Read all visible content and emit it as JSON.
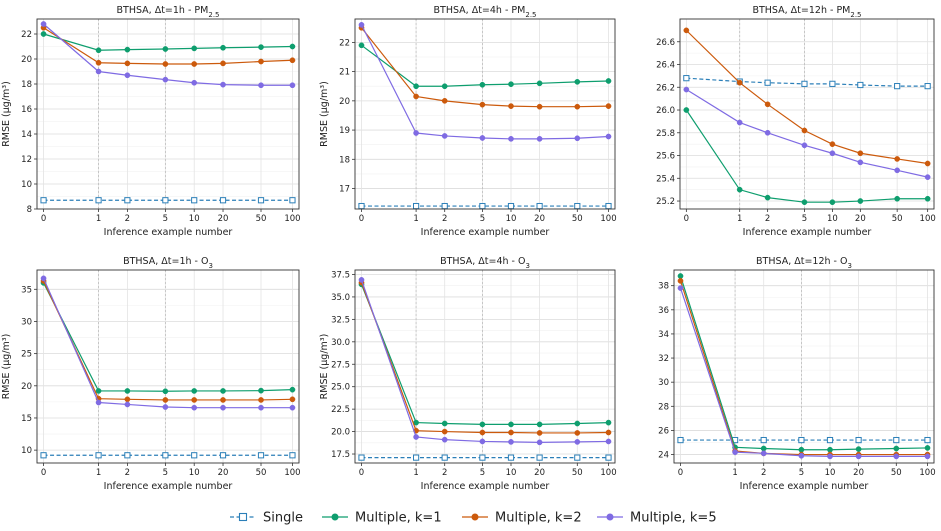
{
  "chart_data": [
    {
      "type": "line",
      "title": "BTHSA, Δt=1h - PM",
      "title_sub": "2.5",
      "xlabel": "Inference example number",
      "ylabel": "RMSE (μg/m³)",
      "categories": [
        "0",
        "1",
        "2",
        "5",
        "10",
        "20",
        "50",
        "100"
      ],
      "ylim": [
        8,
        23.2
      ],
      "yticks": [
        8,
        10,
        12,
        14,
        16,
        18,
        20,
        22
      ],
      "series": [
        {
          "name": "Single",
          "values": [
            8.7,
            8.7,
            8.7,
            8.7,
            8.7,
            8.7,
            8.7,
            8.7
          ]
        },
        {
          "name": "Multiple, k=1",
          "values": [
            22.0,
            20.7,
            20.75,
            20.8,
            20.85,
            20.9,
            20.95,
            21.0
          ]
        },
        {
          "name": "Multiple, k=2",
          "values": [
            22.5,
            19.7,
            19.65,
            19.6,
            19.6,
            19.65,
            19.8,
            19.9
          ]
        },
        {
          "name": "Multiple, k=5",
          "values": [
            22.8,
            19.0,
            18.7,
            18.35,
            18.1,
            17.95,
            17.9,
            17.9
          ]
        }
      ]
    },
    {
      "type": "line",
      "title": "BTHSA, Δt=4h - PM",
      "title_sub": "2.5",
      "xlabel": "Inference example number",
      "ylabel": "RMSE (μg/m³)",
      "categories": [
        "0",
        "1",
        "2",
        "5",
        "10",
        "20",
        "50",
        "100"
      ],
      "ylim": [
        16.3,
        22.8
      ],
      "yticks": [
        17,
        18,
        19,
        20,
        21,
        22
      ],
      "series": [
        {
          "name": "Single",
          "values": [
            16.4,
            16.4,
            16.4,
            16.4,
            16.4,
            16.4,
            16.4,
            16.4
          ]
        },
        {
          "name": "Multiple, k=1",
          "values": [
            21.9,
            20.5,
            20.5,
            20.55,
            20.57,
            20.6,
            20.65,
            20.68
          ]
        },
        {
          "name": "Multiple, k=2",
          "values": [
            22.5,
            20.15,
            20.0,
            19.87,
            19.82,
            19.8,
            19.8,
            19.82
          ]
        },
        {
          "name": "Multiple, k=5",
          "values": [
            22.6,
            18.9,
            18.8,
            18.73,
            18.7,
            18.7,
            18.72,
            18.78
          ]
        }
      ]
    },
    {
      "type": "line",
      "title": "BTHSA, Δt=12h - PM",
      "title_sub": "2.5",
      "xlabel": "Inference example number",
      "ylabel": "",
      "categories": [
        "0",
        "1",
        "2",
        "5",
        "10",
        "20",
        "50",
        "100"
      ],
      "ylim": [
        25.13,
        26.8
      ],
      "yticks": [
        25.2,
        25.4,
        25.6,
        25.8,
        26.0,
        26.2,
        26.4,
        26.6
      ],
      "series": [
        {
          "name": "Single",
          "values": [
            26.28,
            26.25,
            26.24,
            26.23,
            26.23,
            26.22,
            26.21,
            26.21
          ]
        },
        {
          "name": "Multiple, k=1",
          "values": [
            26.0,
            25.3,
            25.23,
            25.19,
            25.19,
            25.2,
            25.22,
            25.22
          ]
        },
        {
          "name": "Multiple, k=2",
          "values": [
            26.7,
            26.24,
            26.05,
            25.82,
            25.7,
            25.62,
            25.57,
            25.53
          ]
        },
        {
          "name": "Multiple, k=5",
          "values": [
            26.18,
            25.89,
            25.8,
            25.69,
            25.62,
            25.54,
            25.47,
            25.41
          ]
        }
      ]
    },
    {
      "type": "line",
      "title": "BTHSA, Δt=1h - O",
      "title_sub": "3",
      "xlabel": "Inference example number",
      "ylabel": "RMSE (μg/m³)",
      "categories": [
        "0",
        "1",
        "2",
        "5",
        "10",
        "20",
        "50",
        "100"
      ],
      "ylim": [
        8,
        38
      ],
      "yticks": [
        10,
        15,
        20,
        25,
        30,
        35
      ],
      "series": [
        {
          "name": "Single",
          "values": [
            9.2,
            9.2,
            9.2,
            9.2,
            9.2,
            9.2,
            9.2,
            9.2
          ]
        },
        {
          "name": "Multiple, k=1",
          "values": [
            36.0,
            19.2,
            19.2,
            19.15,
            19.2,
            19.2,
            19.25,
            19.4
          ]
        },
        {
          "name": "Multiple, k=2",
          "values": [
            36.3,
            18.0,
            17.9,
            17.8,
            17.8,
            17.8,
            17.8,
            17.9
          ]
        },
        {
          "name": "Multiple, k=5",
          "values": [
            36.7,
            17.4,
            17.1,
            16.7,
            16.6,
            16.6,
            16.6,
            16.6
          ]
        }
      ]
    },
    {
      "type": "line",
      "title": "BTHSA, Δt=4h - O",
      "title_sub": "3",
      "xlabel": "Inference example number",
      "ylabel": "RMSE (μg/m³)",
      "categories": [
        "0",
        "1",
        "2",
        "5",
        "10",
        "20",
        "50",
        "100"
      ],
      "ylim": [
        16.5,
        38
      ],
      "yticks": [
        17.5,
        20.0,
        22.5,
        25.0,
        27.5,
        30.0,
        32.5,
        35.0,
        37.5
      ],
      "series": [
        {
          "name": "Single",
          "values": [
            17.1,
            17.1,
            17.1,
            17.1,
            17.1,
            17.1,
            17.1,
            17.1
          ]
        },
        {
          "name": "Multiple, k=1",
          "values": [
            36.4,
            21.0,
            20.9,
            20.8,
            20.8,
            20.8,
            20.9,
            21.0
          ]
        },
        {
          "name": "Multiple, k=2",
          "values": [
            36.6,
            20.1,
            20.0,
            19.9,
            19.9,
            19.85,
            19.85,
            19.9
          ]
        },
        {
          "name": "Multiple, k=5",
          "values": [
            36.9,
            19.4,
            19.1,
            18.9,
            18.85,
            18.8,
            18.85,
            18.9
          ]
        }
      ]
    },
    {
      "type": "line",
      "title": "BTHSA, Δt=12h - O",
      "title_sub": "3",
      "xlabel": "Inference example number",
      "ylabel": "",
      "categories": [
        "0",
        "1",
        "2",
        "5",
        "10",
        "20",
        "50",
        "100"
      ],
      "ylim": [
        23.3,
        39.3
      ],
      "yticks": [
        24,
        26,
        28,
        30,
        32,
        34,
        36,
        38
      ],
      "series": [
        {
          "name": "Single",
          "values": [
            25.2,
            25.2,
            25.2,
            25.2,
            25.2,
            25.2,
            25.2,
            25.2
          ]
        },
        {
          "name": "Multiple, k=1",
          "values": [
            38.8,
            24.6,
            24.5,
            24.4,
            24.4,
            24.45,
            24.5,
            24.55
          ]
        },
        {
          "name": "Multiple, k=2",
          "values": [
            38.4,
            24.3,
            24.1,
            24.0,
            24.0,
            24.0,
            24.0,
            24.0
          ]
        },
        {
          "name": "Multiple, k=5",
          "values": [
            37.8,
            24.2,
            24.1,
            23.9,
            23.85,
            23.85,
            23.85,
            23.85
          ]
        }
      ]
    }
  ],
  "legend": {
    "placement": "bottom",
    "items": [
      {
        "name": "Single",
        "color": "#2b7fb8",
        "marker": "open-square",
        "dash": true
      },
      {
        "name": "Multiple, k=1",
        "color": "#0e9e6e",
        "marker": "circle",
        "dash": false
      },
      {
        "name": "Multiple, k=2",
        "color": "#cc5a0c",
        "marker": "circle",
        "dash": false
      },
      {
        "name": "Multiple, k=5",
        "color": "#7f6be3",
        "marker": "circle",
        "dash": false
      }
    ]
  },
  "colors": [
    "#2b7fb8",
    "#0e9e6e",
    "#cc5a0c",
    "#7f6be3"
  ]
}
